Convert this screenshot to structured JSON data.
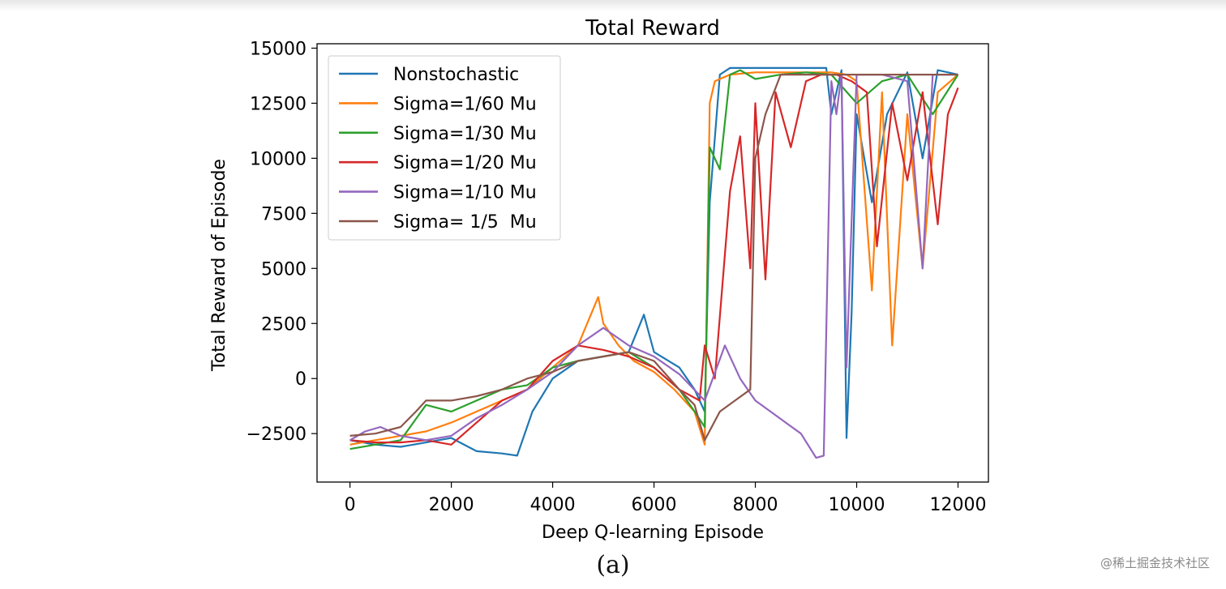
{
  "chart_data": {
    "type": "line",
    "title": "Total Reward",
    "xlabel": "Deep Q-learning Episode",
    "ylabel": "Total Reward of Episode",
    "xlim": [
      -650,
      12600
    ],
    "ylim": [
      -4700,
      15200
    ],
    "xticks": [
      0,
      2000,
      4000,
      6000,
      8000,
      10000,
      12000
    ],
    "xtick_labels": [
      "0",
      "2000",
      "4000",
      "6000",
      "8000",
      "10000",
      "12000"
    ],
    "yticks": [
      -2500,
      0,
      2500,
      5000,
      7500,
      10000,
      12500,
      15000
    ],
    "ytick_labels": [
      "−2500",
      "0",
      "2500",
      "5000",
      "7500",
      "10000",
      "12500",
      "15000"
    ],
    "legend_position": "top-left",
    "series": [
      {
        "name": "Nonstochastic",
        "color": "#1f77b4",
        "x": [
          0,
          500,
          1000,
          1500,
          2000,
          2500,
          3000,
          3300,
          3600,
          4000,
          4500,
          5000,
          5500,
          5800,
          6000,
          6500,
          6800,
          7000,
          7100,
          7300,
          7500,
          7700,
          8000,
          8500,
          9000,
          9400,
          9500,
          9700,
          9800,
          9900,
          10000,
          10300,
          10600,
          11000,
          11300,
          11600,
          12000
        ],
        "values": [
          -2800,
          -3000,
          -3100,
          -2900,
          -2700,
          -3300,
          -3400,
          -3500,
          -1500,
          0,
          800,
          1000,
          1200,
          2900,
          1200,
          500,
          -500,
          -1500,
          8000,
          13800,
          14100,
          14100,
          14100,
          14100,
          14100,
          14100,
          12000,
          14000,
          -2700,
          3000,
          12000,
          8000,
          12000,
          13900,
          10000,
          14000,
          13800
        ]
      },
      {
        "name": "Sigma=1/60 Mu",
        "color": "#ff7f0e",
        "x": [
          0,
          500,
          1000,
          1500,
          2000,
          2500,
          3000,
          3500,
          4000,
          4500,
          4900,
          5000,
          5300,
          5600,
          6000,
          6400,
          6800,
          7000,
          7100,
          7200,
          7500,
          8000,
          8500,
          9000,
          9500,
          9800,
          10000,
          10300,
          10500,
          10700,
          11000,
          11300,
          11600,
          12000
        ],
        "values": [
          -3000,
          -2800,
          -2600,
          -2400,
          -2000,
          -1500,
          -1000,
          -500,
          500,
          1500,
          3700,
          2500,
          1500,
          800,
          300,
          -500,
          -1500,
          -3000,
          12500,
          13500,
          13800,
          13900,
          13900,
          13900,
          13900,
          13800,
          13500,
          4000,
          13000,
          1500,
          12000,
          5000,
          13000,
          13800
        ]
      },
      {
        "name": "Sigma=1/30 Mu",
        "color": "#2ca02c",
        "x": [
          0,
          500,
          1000,
          1500,
          2000,
          2500,
          3000,
          3500,
          4000,
          4500,
          5000,
          5500,
          6000,
          6500,
          6800,
          7000,
          7100,
          7300,
          7500,
          7700,
          8000,
          8500,
          9000,
          9500,
          10000,
          10500,
          11000,
          11500,
          12000
        ],
        "values": [
          -3200,
          -3000,
          -2800,
          -1200,
          -1500,
          -1000,
          -500,
          -300,
          500,
          800,
          1000,
          1200,
          500,
          -500,
          -1500,
          -2200,
          10500,
          9500,
          13800,
          14000,
          13600,
          13800,
          13900,
          13800,
          12500,
          13500,
          13800,
          12000,
          13800
        ]
      },
      {
        "name": "Sigma=1/20 Mu",
        "color": "#d62728",
        "x": [
          0,
          500,
          1000,
          1500,
          2000,
          2500,
          3000,
          3500,
          4000,
          4500,
          5000,
          5500,
          6000,
          6500,
          6900,
          7000,
          7200,
          7500,
          7700,
          7900,
          8000,
          8200,
          8400,
          8700,
          9000,
          9300,
          9600,
          9900,
          10200,
          10400,
          10700,
          11000,
          11300,
          11600,
          11800,
          12000
        ],
        "values": [
          -2800,
          -2900,
          -2900,
          -2800,
          -3000,
          -2000,
          -1000,
          -500,
          800,
          1500,
          1300,
          1000,
          500,
          -500,
          -1000,
          1500,
          0,
          8500,
          11000,
          5000,
          12500,
          4500,
          13000,
          10500,
          13500,
          13800,
          13800,
          13500,
          13000,
          6000,
          12500,
          9000,
          13000,
          7000,
          12000,
          13200
        ]
      },
      {
        "name": "Sigma=1/10 Mu",
        "color": "#9467bd",
        "x": [
          0,
          300,
          600,
          1000,
          1500,
          2000,
          2500,
          3000,
          3500,
          4000,
          4500,
          5000,
          5500,
          6000,
          6500,
          7000,
          7400,
          7700,
          8000,
          8300,
          8600,
          8900,
          9200,
          9350,
          9500,
          9600,
          9700,
          9800,
          10000,
          10500,
          11000,
          11300,
          11500,
          12000
        ],
        "values": [
          -2800,
          -2400,
          -2200,
          -2600,
          -2800,
          -2600,
          -1800,
          -1200,
          -500,
          300,
          1500,
          2300,
          1500,
          1000,
          200,
          -1000,
          1500,
          0,
          -1000,
          -1500,
          -2000,
          -2500,
          -3600,
          -3500,
          13500,
          12000,
          13800,
          500,
          13800,
          13800,
          13500,
          5000,
          13800,
          13800
        ]
      },
      {
        "name": "Sigma= 1/5  Mu",
        "color": "#8c564b",
        "x": [
          0,
          500,
          1000,
          1300,
          1500,
          2000,
          2500,
          3000,
          3500,
          4000,
          4500,
          5000,
          5500,
          6000,
          6500,
          6800,
          7000,
          7300,
          7600,
          7900,
          8000,
          8200,
          8500,
          9000,
          9500,
          10000,
          10500,
          11000,
          11500,
          12000
        ],
        "values": [
          -2600,
          -2500,
          -2200,
          -1500,
          -1000,
          -1000,
          -800,
          -500,
          0,
          300,
          800,
          1000,
          1200,
          800,
          -500,
          -1200,
          -2800,
          -1500,
          -1000,
          -500,
          10000,
          12000,
          13800,
          13800,
          13800,
          13800,
          13800,
          13800,
          13800,
          13800
        ]
      }
    ]
  },
  "figure": {
    "caption": "(a)",
    "watermark": "@稀土掘金技术社区"
  }
}
